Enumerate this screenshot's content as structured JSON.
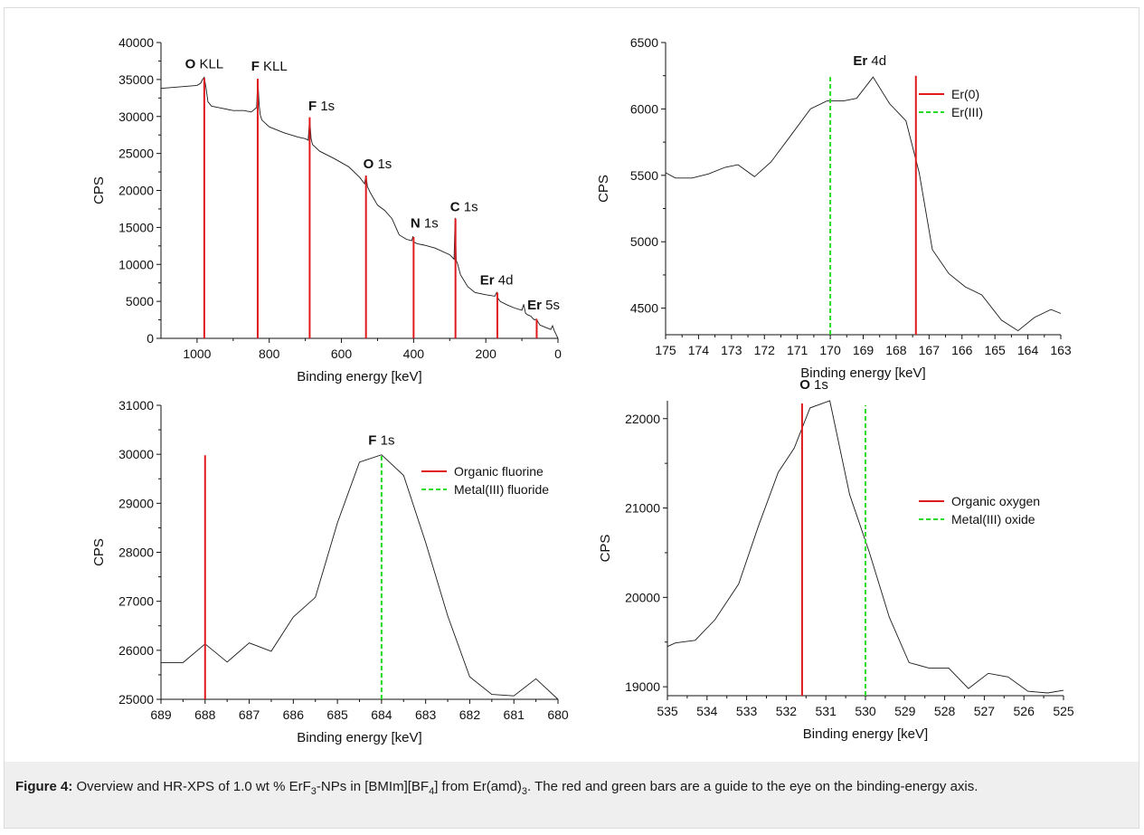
{
  "caption": {
    "label": "Figure 4:",
    "text_a": " Overview and HR-XPS of 1.0 wt % ErF",
    "sub_a": "3",
    "text_b": "-NPs in [BMIm][BF",
    "sub_b": "4",
    "text_c": "] from Er(amd)",
    "sub_c": "3",
    "text_d": ". The red and green bars are a guide to the eye on the binding-energy axis."
  },
  "colors": {
    "spectrum": "#1a1a1a",
    "red_bar": "#e0191c",
    "green_bar": "#22dd22",
    "axis": "#111111"
  },
  "chart_data": [
    {
      "id": "overview",
      "type": "line",
      "xlabel": "Binding energy [keV]",
      "ylabel": "CPS",
      "xlim": [
        1100,
        0
      ],
      "ylim": [
        0,
        40000
      ],
      "xticks": [
        1000,
        800,
        600,
        400,
        200,
        0
      ],
      "yticks": [
        0,
        5000,
        10000,
        15000,
        20000,
        25000,
        30000,
        35000,
        40000
      ],
      "series": [
        {
          "x": [
            1100,
            1050,
            1000,
            990,
            985,
            980,
            975,
            970,
            960,
            940,
            900,
            870,
            850,
            835,
            832,
            828,
            825,
            820,
            800,
            760,
            720,
            700,
            692,
            688,
            684,
            680,
            660,
            620,
            580,
            550,
            536,
            532,
            528,
            520,
            500,
            480,
            460,
            440,
            420,
            405,
            402,
            399,
            390,
            370,
            340,
            300,
            288,
            285,
            282,
            279,
            270,
            250,
            230,
            200,
            175,
            170,
            166,
            160,
            140,
            120,
            100,
            95,
            90,
            85,
            75,
            70,
            65,
            60,
            50,
            40,
            30,
            20,
            15,
            10,
            5,
            0
          ],
          "y": [
            33800,
            34000,
            34200,
            34500,
            35000,
            35300,
            33800,
            32000,
            31400,
            31200,
            30800,
            30800,
            30600,
            31200,
            35100,
            31500,
            30200,
            29500,
            28600,
            27800,
            27200,
            27000,
            26800,
            29800,
            27000,
            26200,
            25300,
            24300,
            23200,
            21800,
            20900,
            22000,
            20500,
            19700,
            18000,
            17300,
            16200,
            14000,
            13400,
            13200,
            13800,
            13000,
            12800,
            12600,
            12200,
            11300,
            10700,
            16300,
            10500,
            10200,
            8600,
            7000,
            6200,
            5900,
            5700,
            6200,
            5400,
            5000,
            4500,
            4100,
            3800,
            4600,
            3400,
            3200,
            3000,
            2700,
            2500,
            2600,
            1800,
            1600,
            1400,
            1200,
            1700,
            1000,
            500,
            0
          ]
        }
      ],
      "bars": [
        {
          "x": 980,
          "y": 35200,
          "color": "red"
        },
        {
          "x": 832,
          "y": 35100,
          "color": "red"
        },
        {
          "x": 688,
          "y": 29900,
          "color": "red"
        },
        {
          "x": 532,
          "y": 22000,
          "color": "red"
        },
        {
          "x": 400,
          "y": 13700,
          "color": "red"
        },
        {
          "x": 284,
          "y": 16200,
          "color": "red"
        },
        {
          "x": 168,
          "y": 6200,
          "color": "red"
        },
        {
          "x": 59,
          "y": 2600,
          "color": "red"
        }
      ],
      "annotations": [
        {
          "bold": "O",
          "text": " KLL",
          "x": 980,
          "y": 36500
        },
        {
          "bold": "F",
          "text": " KLL",
          "x": 800,
          "y": 36200
        },
        {
          "bold": "F",
          "text": " 1s",
          "x": 655,
          "y": 30800
        },
        {
          "bold": "O",
          "text": " 1s",
          "x": 500,
          "y": 23000
        },
        {
          "bold": "N",
          "text": " 1s",
          "x": 370,
          "y": 15000
        },
        {
          "bold": "C",
          "text": " 1s",
          "x": 260,
          "y": 17200
        },
        {
          "bold": "Er",
          "text": " 4d",
          "x": 170,
          "y": 7300
        },
        {
          "bold": "Er",
          "text": " 5s",
          "x": 40,
          "y": 3900
        }
      ]
    },
    {
      "id": "er4d",
      "type": "line",
      "xlabel": "Binding energy [keV]",
      "ylabel": "CPS",
      "xlim": [
        175,
        163
      ],
      "ylim": [
        4300,
        6500
      ],
      "xticks": [
        175,
        174,
        173,
        172,
        171,
        170,
        169,
        168,
        167,
        166,
        165,
        164,
        163
      ],
      "yticks": [
        4500,
        5000,
        5500,
        6000,
        6500
      ],
      "series": [
        {
          "x": [
            175,
            174.7,
            174.2,
            173.7,
            173.2,
            172.8,
            172.3,
            171.8,
            171.2,
            170.6,
            170.1,
            169.6,
            169.2,
            168.7,
            168.2,
            167.7,
            167.3,
            166.9,
            166.4,
            165.9,
            165.4,
            164.8,
            164.3,
            163.8,
            163.3,
            163
          ],
          "y": [
            5520,
            5480,
            5480,
            5510,
            5560,
            5580,
            5490,
            5600,
            5800,
            6000,
            6060,
            6060,
            6080,
            6240,
            6040,
            5910,
            5520,
            4940,
            4760,
            4660,
            4600,
            4410,
            4330,
            4430,
            4490,
            4460
          ]
        }
      ],
      "bars": [
        {
          "x": 170,
          "y": 6240,
          "color": "green"
        },
        {
          "x": 167.4,
          "y": 6250,
          "color": "red"
        }
      ],
      "annotations": [
        {
          "bold": "Er",
          "text": " 4d",
          "x": 168.8,
          "y": 6330
        }
      ],
      "legend": {
        "position": "top-right",
        "entries": [
          {
            "label": "Er(0)",
            "color": "red"
          },
          {
            "label": "Er(III)",
            "color": "green"
          }
        ]
      }
    },
    {
      "id": "f1s",
      "type": "line",
      "xlabel": "Binding energy [keV]",
      "ylabel": "CPS",
      "xlim": [
        689,
        680
      ],
      "ylim": [
        25000,
        31000
      ],
      "xticks": [
        689,
        688,
        687,
        686,
        685,
        684,
        683,
        682,
        681,
        680
      ],
      "yticks": [
        25000,
        26000,
        27000,
        28000,
        29000,
        30000,
        31000
      ],
      "series": [
        {
          "x": [
            689,
            688.5,
            688,
            687.5,
            687,
            686.5,
            686,
            685.5,
            685,
            684.5,
            684,
            683.5,
            683,
            682.5,
            682,
            681.5,
            681,
            680.5,
            680
          ],
          "y": [
            25750,
            25750,
            26130,
            25760,
            26150,
            25980,
            26680,
            27080,
            28600,
            29840,
            29990,
            29570,
            28200,
            26700,
            25460,
            25100,
            25070,
            25420,
            25000
          ]
        }
      ],
      "bars": [
        {
          "x": 688,
          "y": 29980,
          "color": "red"
        },
        {
          "x": 684,
          "y": 29980,
          "color": "green"
        }
      ],
      "annotations": [
        {
          "bold": "F",
          "text": " 1s",
          "x": 684,
          "y": 30200
        }
      ],
      "legend": {
        "position": "top-right",
        "entries": [
          {
            "label": "Organic fluorine",
            "color": "red"
          },
          {
            "label": "Metal(III) fluoride",
            "color": "green"
          }
        ]
      }
    },
    {
      "id": "o1s",
      "type": "line",
      "xlabel": "Binding energy [keV]",
      "ylabel": "CPS",
      "xlim": [
        535,
        525
      ],
      "ylim": [
        18900,
        22200
      ],
      "xticks": [
        535,
        534,
        533,
        532,
        531,
        530,
        529,
        528,
        527,
        526,
        525
      ],
      "yticks": [
        19000,
        20000,
        21000,
        22000
      ],
      "series": [
        {
          "x": [
            535,
            534.8,
            534.3,
            533.8,
            533.2,
            532.7,
            532.2,
            531.8,
            531.4,
            530.9,
            530.4,
            529.9,
            529.4,
            528.9,
            528.4,
            527.9,
            527.4,
            526.9,
            526.4,
            525.9,
            525.4,
            525
          ],
          "y": [
            19450,
            19490,
            19520,
            19750,
            20150,
            20800,
            21400,
            21670,
            22120,
            22200,
            21150,
            20500,
            19780,
            19270,
            19210,
            19210,
            18980,
            19150,
            19110,
            18950,
            18930,
            18960
          ]
        }
      ],
      "bars": [
        {
          "x": 531.6,
          "y": 22170,
          "color": "red"
        },
        {
          "x": 530,
          "y": 22150,
          "color": "green"
        }
      ],
      "annotations": [
        {
          "bold": "O",
          "text": " 1s",
          "x": 531.3,
          "y": 22330
        }
      ],
      "legend": {
        "position": "right",
        "entries": [
          {
            "label": "Organic oxygen",
            "color": "red"
          },
          {
            "label": "Metal(III) oxide",
            "color": "green"
          }
        ]
      }
    }
  ]
}
